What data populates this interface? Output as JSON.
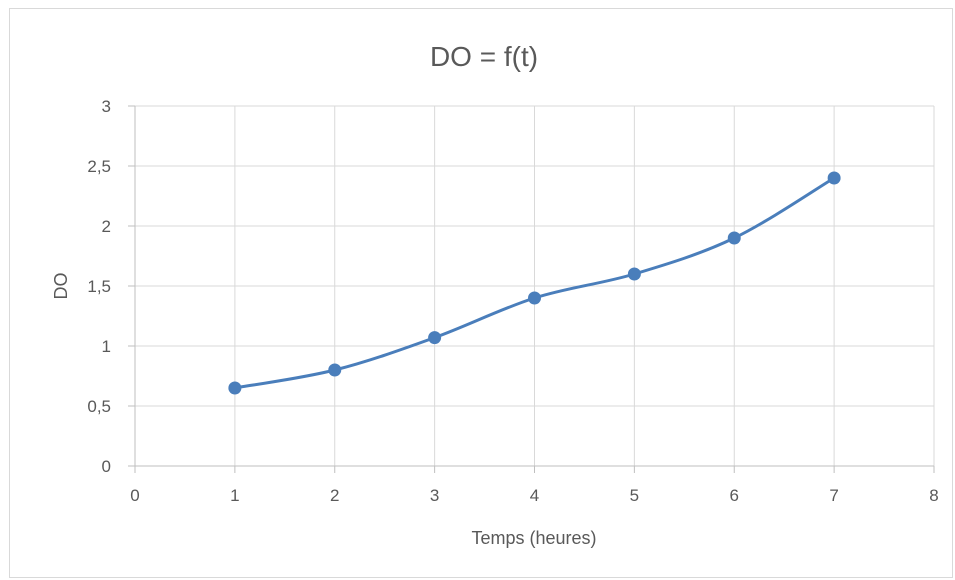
{
  "chart_data": {
    "type": "line",
    "title": "DO = f(t)",
    "xlabel": "Temps (heures)",
    "ylabel": "DO",
    "xlim": [
      0,
      8
    ],
    "ylim": [
      0,
      3
    ],
    "x_ticks": [
      "0",
      "1",
      "2",
      "3",
      "4",
      "5",
      "6",
      "7",
      "8"
    ],
    "y_ticks": [
      "0",
      "0,5",
      "1",
      "1,5",
      "2",
      "2,5",
      "3"
    ],
    "grid": true,
    "smooth": true,
    "series": [
      {
        "x": [
          1,
          2,
          3,
          4,
          5,
          6,
          7
        ],
        "y": [
          0.65,
          0.8,
          1.07,
          1.4,
          1.6,
          1.9,
          2.4
        ],
        "color": "#4a7ebb"
      }
    ]
  }
}
